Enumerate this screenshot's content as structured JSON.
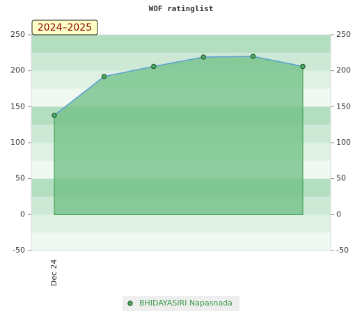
{
  "chart_data": {
    "type": "area",
    "title": "WOF ratinglist",
    "annotation": "2024–2025",
    "categories": [
      "Dec 24",
      null,
      null,
      null,
      null,
      null
    ],
    "series": [
      {
        "name": "BHIDAYASIRI Napasnada",
        "color": "#5a9fd4",
        "fill": "#6fbf85",
        "values": [
          138,
          192,
          206,
          219,
          220,
          206
        ]
      }
    ],
    "ylim": [
      -50,
      250
    ],
    "yticks": [
      -50,
      0,
      50,
      100,
      150,
      200,
      250
    ],
    "y2lim": [
      -50,
      250
    ],
    "y2ticks": [
      -50,
      0,
      50,
      100,
      150,
      200,
      250
    ],
    "grid": true
  }
}
